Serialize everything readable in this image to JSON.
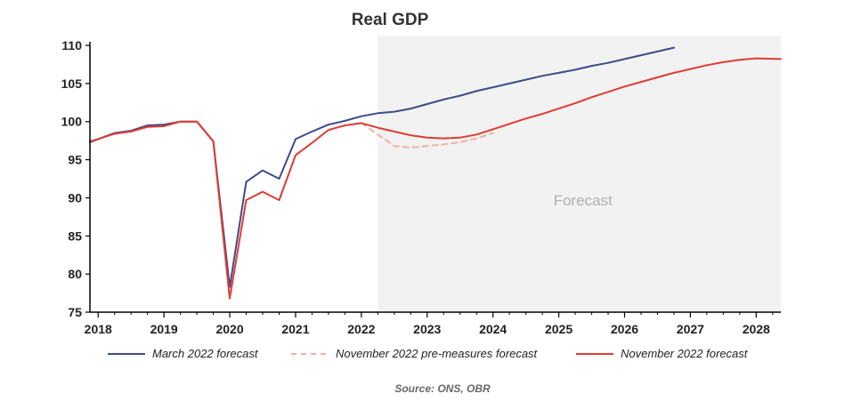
{
  "chart_data": {
    "type": "line",
    "title": "Real GDP",
    "xlabel": "",
    "ylabel": "",
    "xlim": [
      2017.875,
      2028.375
    ],
    "ylim": [
      75,
      110
    ],
    "yticks": [
      75,
      80,
      85,
      90,
      95,
      100,
      105,
      110
    ],
    "xticks": [
      2018,
      2019,
      2020,
      2021,
      2022,
      2023,
      2024,
      2025,
      2026,
      2027,
      2028
    ],
    "xtick_labels": [
      "2018",
      "2019",
      "2020",
      "2021",
      "2022",
      "2023",
      "2024",
      "2025",
      "2026",
      "2027",
      "2028"
    ],
    "grid": false,
    "legend_position": "bottom",
    "forecast_shading": {
      "start": 2022.25,
      "end": 2028.375,
      "label": "Forecast"
    },
    "source": "Source: ONS, OBR",
    "series": [
      {
        "name": "March 2022 forecast",
        "color": "#3f4a8c",
        "dash": "solid",
        "points": [
          [
            2017.875,
            97.3
          ],
          [
            2018.0,
            97.7
          ],
          [
            2018.25,
            98.5
          ],
          [
            2018.5,
            98.8
          ],
          [
            2018.75,
            99.5
          ],
          [
            2019.0,
            99.6
          ],
          [
            2019.25,
            100.0
          ],
          [
            2019.5,
            100.0
          ],
          [
            2019.75,
            97.4
          ],
          [
            2020.0,
            78.3
          ],
          [
            2020.25,
            92.1
          ],
          [
            2020.5,
            93.6
          ],
          [
            2020.75,
            92.5
          ],
          [
            2021.0,
            97.7
          ],
          [
            2021.25,
            98.7
          ],
          [
            2021.5,
            99.6
          ],
          [
            2021.75,
            100.1
          ],
          [
            2022.0,
            100.7
          ],
          [
            2022.25,
            101.1
          ],
          [
            2022.5,
            101.3
          ],
          [
            2022.75,
            101.7
          ],
          [
            2023.0,
            102.3
          ],
          [
            2023.25,
            102.9
          ],
          [
            2023.5,
            103.4
          ],
          [
            2023.75,
            104.0
          ],
          [
            2024.0,
            104.5
          ],
          [
            2024.25,
            105.0
          ],
          [
            2024.5,
            105.5
          ],
          [
            2024.75,
            106.0
          ],
          [
            2025.0,
            106.4
          ],
          [
            2025.25,
            106.8
          ],
          [
            2025.5,
            107.3
          ],
          [
            2025.75,
            107.7
          ],
          [
            2026.0,
            108.2
          ],
          [
            2026.25,
            108.7
          ],
          [
            2026.5,
            109.2
          ],
          [
            2026.75,
            109.7
          ]
        ]
      },
      {
        "name": "November 2022 pre-measures forecast",
        "color": "#f4aea6",
        "dash": "dashed",
        "points": [
          [
            2022.0,
            99.8
          ],
          [
            2022.25,
            98.3
          ],
          [
            2022.5,
            96.8
          ],
          [
            2022.75,
            96.6
          ],
          [
            2023.0,
            96.8
          ],
          [
            2023.25,
            97.0
          ],
          [
            2023.5,
            97.3
          ],
          [
            2023.75,
            97.8
          ],
          [
            2024.0,
            98.5
          ]
        ]
      },
      {
        "name": "November 2022 forecast",
        "color": "#e03c31",
        "dash": "solid",
        "points": [
          [
            2017.875,
            97.4
          ],
          [
            2018.0,
            97.7
          ],
          [
            2018.25,
            98.4
          ],
          [
            2018.5,
            98.7
          ],
          [
            2018.75,
            99.3
          ],
          [
            2019.0,
            99.4
          ],
          [
            2019.25,
            100.0
          ],
          [
            2019.5,
            100.0
          ],
          [
            2019.75,
            97.4
          ],
          [
            2020.0,
            76.8
          ],
          [
            2020.25,
            89.7
          ],
          [
            2020.5,
            90.8
          ],
          [
            2020.75,
            89.7
          ],
          [
            2021.0,
            95.6
          ],
          [
            2021.25,
            97.2
          ],
          [
            2021.5,
            98.9
          ],
          [
            2021.75,
            99.5
          ],
          [
            2022.0,
            99.8
          ],
          [
            2022.25,
            99.2
          ],
          [
            2022.5,
            98.7
          ],
          [
            2022.75,
            98.2
          ],
          [
            2023.0,
            97.9
          ],
          [
            2023.25,
            97.8
          ],
          [
            2023.5,
            97.9
          ],
          [
            2023.75,
            98.3
          ],
          [
            2024.0,
            99.0
          ],
          [
            2024.25,
            99.7
          ],
          [
            2024.5,
            100.4
          ],
          [
            2024.75,
            101.0
          ],
          [
            2025.0,
            101.7
          ],
          [
            2025.25,
            102.4
          ],
          [
            2025.5,
            103.2
          ],
          [
            2025.75,
            103.9
          ],
          [
            2026.0,
            104.6
          ],
          [
            2026.25,
            105.2
          ],
          [
            2026.5,
            105.8
          ],
          [
            2026.75,
            106.4
          ],
          [
            2027.0,
            106.9
          ],
          [
            2027.25,
            107.4
          ],
          [
            2027.5,
            107.8
          ],
          [
            2027.75,
            108.1
          ],
          [
            2028.0,
            108.3
          ],
          [
            2028.375,
            108.2
          ]
        ]
      }
    ]
  }
}
